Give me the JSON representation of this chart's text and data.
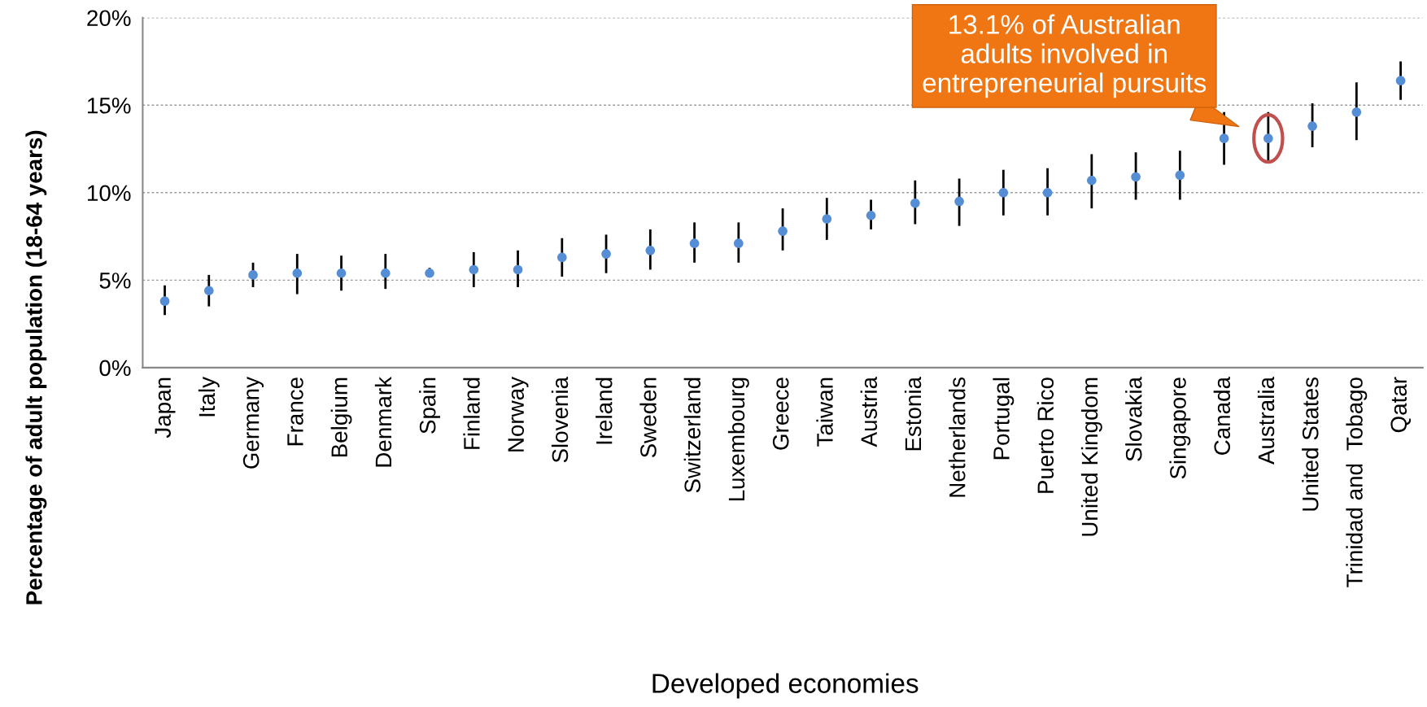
{
  "chart_data": {
    "type": "scatter",
    "xlabel": "Developed economies",
    "ylabel": "Percentage of adult population (18-64 years)",
    "categories": [
      "Japan",
      "Italy",
      "Germany",
      "France",
      "Belgium",
      "Denmark",
      "Spain",
      "Finland",
      "Norway",
      "Slovenia",
      "Ireland",
      "Sweden",
      "Switzerland",
      "Luxembourg",
      "Greece",
      "Taiwan",
      "Austria",
      "Estonia",
      "Netherlands",
      "Portugal",
      "Puerto Rico",
      "United Kingdom",
      "Slovakia",
      "Singapore",
      "Canada",
      "Australia",
      "United States",
      "Trinidad and  Tobago",
      "Qatar"
    ],
    "series": [
      {
        "color": "#558ed5",
        "values": [
          3.8,
          4.4,
          5.3,
          5.4,
          5.4,
          5.4,
          5.4,
          5.6,
          5.6,
          6.3,
          6.5,
          6.7,
          7.1,
          7.1,
          7.8,
          8.5,
          8.7,
          9.4,
          9.5,
          10.0,
          10.0,
          10.7,
          10.9,
          11.0,
          13.1,
          13.1,
          13.8,
          14.6,
          16.4
        ],
        "errors": [
          [
            3.0,
            4.7
          ],
          [
            3.5,
            5.3
          ],
          [
            4.6,
            6.0
          ],
          [
            4.2,
            6.5
          ],
          [
            4.4,
            6.4
          ],
          [
            4.5,
            6.5
          ],
          [
            5.2,
            5.7
          ],
          [
            4.6,
            6.6
          ],
          [
            4.6,
            6.7
          ],
          [
            5.2,
            7.4
          ],
          [
            5.4,
            7.6
          ],
          [
            5.6,
            7.9
          ],
          [
            6.0,
            8.3
          ],
          [
            6.0,
            8.3
          ],
          [
            6.7,
            9.1
          ],
          [
            7.3,
            9.7
          ],
          [
            7.9,
            9.6
          ],
          [
            8.2,
            10.7
          ],
          [
            8.1,
            10.8
          ],
          [
            8.7,
            11.3
          ],
          [
            8.7,
            11.4
          ],
          [
            9.1,
            12.2
          ],
          [
            9.6,
            12.3
          ],
          [
            9.6,
            12.4
          ],
          [
            11.6,
            14.6
          ],
          [
            11.8,
            14.6
          ],
          [
            12.6,
            15.1
          ],
          [
            13.0,
            16.3
          ],
          [
            15.3,
            17.5
          ]
        ]
      }
    ],
    "ylim": [
      0,
      20
    ],
    "yticks": [
      {
        "value": 0,
        "label": "0%"
      },
      {
        "value": 5,
        "label": "5%"
      },
      {
        "value": 10,
        "label": "10%"
      },
      {
        "value": 15,
        "label": "15%"
      },
      {
        "value": 20,
        "label": "20%"
      }
    ],
    "grid": "y",
    "legend": false,
    "annotations": [
      {
        "text": "13.1% of Australian\nadults involved in\nentrepreneurial pursuits",
        "x": "Australia",
        "y": 13.1
      }
    ]
  }
}
